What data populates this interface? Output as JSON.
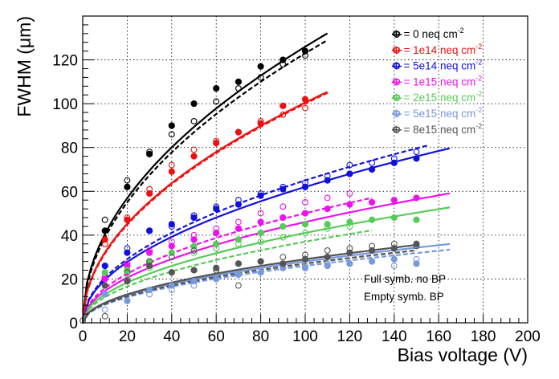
{
  "chart_data": {
    "type": "scatter",
    "xlabel": "Bias voltage (V)",
    "ylabel": "FWHM (μm)",
    "xlim": [
      0,
      200
    ],
    "ylim": [
      0,
      140
    ],
    "xticks": [
      0,
      20,
      40,
      60,
      80,
      100,
      120,
      140,
      160,
      180,
      200
    ],
    "yticks": [
      0,
      20,
      40,
      60,
      80,
      100,
      120
    ],
    "grid": true,
    "legend_placement": "top-right",
    "legend_prefix": "Φ = ",
    "legend_unit": " neq cm",
    "legend_exp": "-2",
    "annotations": [
      "Full symb. no BP",
      "Empty symb. BP"
    ],
    "series": [
      {
        "name": "0",
        "color": "#000000",
        "fit_full": {
          "a": 12.5,
          "b": 1.0,
          "xmax": 110
        },
        "fit_empty": {
          "a": 12.3,
          "b": 0.0,
          "xmax": 110
        },
        "full": [
          [
            10,
            42
          ],
          [
            20,
            62
          ],
          [
            30,
            77
          ],
          [
            40,
            90
          ],
          [
            50,
            100
          ],
          [
            60,
            107
          ],
          [
            70,
            110
          ],
          [
            80,
            117
          ],
          [
            90,
            120
          ],
          [
            100,
            124
          ]
        ],
        "empty": [
          [
            10,
            47
          ],
          [
            20,
            65
          ],
          [
            30,
            78
          ],
          [
            40,
            86
          ],
          [
            50,
            92
          ],
          [
            60,
            101
          ],
          [
            70,
            107
          ],
          [
            80,
            112
          ],
          [
            90,
            118
          ],
          [
            100,
            122
          ]
        ]
      },
      {
        "name": "1e14",
        "color": "#ee1111",
        "fit_full": {
          "a": 10.0,
          "b": 0.5,
          "xmax": 110
        },
        "fit_empty": {
          "a": 10.0,
          "b": 0.0,
          "xmax": 110
        },
        "full": [
          [
            10,
            38
          ],
          [
            20,
            47
          ],
          [
            30,
            59
          ],
          [
            40,
            69
          ],
          [
            50,
            76
          ],
          [
            60,
            82
          ],
          [
            70,
            87
          ],
          [
            80,
            91
          ],
          [
            90,
            99
          ],
          [
            100,
            102
          ]
        ],
        "empty": [
          [
            10,
            36
          ],
          [
            20,
            48
          ],
          [
            30,
            61
          ],
          [
            40,
            72
          ],
          [
            50,
            79
          ],
          [
            60,
            83
          ],
          [
            70,
            87
          ],
          [
            80,
            92
          ],
          [
            90,
            95
          ],
          [
            100,
            98
          ]
        ]
      },
      {
        "name": "5e14",
        "color": "#1111dd",
        "fit_full": {
          "a": 6.2,
          "b": 0.0,
          "xmax": 165
        },
        "fit_empty": {
          "a": 6.5,
          "b": 0.0,
          "xmax": 155
        },
        "full": [
          [
            10,
            26
          ],
          [
            20,
            32
          ],
          [
            30,
            42
          ],
          [
            40,
            45
          ],
          [
            50,
            48
          ],
          [
            60,
            52
          ],
          [
            70,
            54
          ],
          [
            80,
            58
          ],
          [
            90,
            61
          ],
          [
            100,
            62
          ],
          [
            110,
            65
          ],
          [
            120,
            68
          ],
          [
            130,
            70
          ],
          [
            140,
            73
          ],
          [
            150,
            75
          ]
        ],
        "empty": [
          [
            10,
            21
          ],
          [
            20,
            34
          ],
          [
            30,
            42
          ],
          [
            40,
            44
          ],
          [
            50,
            49
          ],
          [
            60,
            53
          ],
          [
            70,
            56
          ],
          [
            80,
            59
          ],
          [
            90,
            62
          ],
          [
            100,
            64
          ],
          [
            110,
            67
          ],
          [
            120,
            72
          ],
          [
            130,
            73
          ],
          [
            140,
            75
          ],
          [
            150,
            78
          ]
        ]
      },
      {
        "name": "1e15",
        "color": "#ee11ee",
        "fit_full": {
          "a": 4.6,
          "b": 0.0,
          "xmax": 165
        },
        "fit_empty": {
          "a": 5.0,
          "b": 0.0,
          "xmax": 130
        },
        "full": [
          [
            10,
            20
          ],
          [
            20,
            26
          ],
          [
            30,
            32
          ],
          [
            40,
            35
          ],
          [
            50,
            38
          ],
          [
            60,
            41
          ],
          [
            70,
            43
          ],
          [
            80,
            46
          ],
          [
            90,
            48
          ],
          [
            100,
            50
          ],
          [
            110,
            52
          ],
          [
            120,
            54
          ],
          [
            130,
            55
          ],
          [
            140,
            56
          ],
          [
            150,
            57
          ]
        ],
        "empty": [
          [
            10,
            21
          ],
          [
            20,
            27
          ],
          [
            30,
            33
          ],
          [
            40,
            37
          ],
          [
            50,
            40
          ],
          [
            60,
            43
          ],
          [
            70,
            46
          ],
          [
            80,
            50
          ],
          [
            90,
            53
          ],
          [
            100,
            55
          ],
          [
            110,
            57
          ],
          [
            120,
            59
          ]
        ]
      },
      {
        "name": "2e15",
        "color": "#55cc55",
        "fit_full": {
          "a": 4.1,
          "b": 0.0,
          "xmax": 165
        },
        "fit_empty": {
          "a": 3.7,
          "b": 0.0,
          "xmax": 130
        },
        "full": [
          [
            10,
            23
          ],
          [
            20,
            24
          ],
          [
            30,
            28
          ],
          [
            40,
            32
          ],
          [
            50,
            35
          ],
          [
            60,
            36
          ],
          [
            70,
            38
          ],
          [
            80,
            41
          ],
          [
            90,
            44
          ],
          [
            100,
            45
          ],
          [
            110,
            45
          ],
          [
            120,
            46
          ],
          [
            130,
            47
          ],
          [
            140,
            48
          ],
          [
            150,
            47
          ]
        ],
        "empty": [
          [
            10,
            13
          ],
          [
            20,
            20
          ],
          [
            30,
            25
          ],
          [
            40,
            30
          ],
          [
            50,
            32
          ],
          [
            60,
            34
          ],
          [
            70,
            36
          ],
          [
            80,
            37
          ],
          [
            90,
            39
          ],
          [
            100,
            41
          ],
          [
            110,
            43
          ],
          [
            120,
            44
          ]
        ]
      },
      {
        "name": "5e15",
        "color": "#7799dd",
        "fit_full": {
          "a": 2.8,
          "b": 0.0,
          "xmax": 165
        },
        "fit_empty": {
          "a": 2.6,
          "b": 0.0,
          "xmax": 165
        },
        "full": [
          [
            10,
            13
          ],
          [
            20,
            10
          ],
          [
            30,
            15
          ],
          [
            40,
            17
          ],
          [
            50,
            19
          ],
          [
            60,
            20
          ],
          [
            70,
            22
          ],
          [
            80,
            23
          ],
          [
            90,
            25
          ],
          [
            100,
            25
          ],
          [
            110,
            26
          ],
          [
            120,
            27
          ],
          [
            130,
            28
          ],
          [
            140,
            29
          ],
          [
            150,
            27
          ]
        ],
        "empty": [
          [
            10,
            6
          ],
          [
            20,
            10
          ],
          [
            30,
            13
          ],
          [
            40,
            15
          ],
          [
            50,
            17
          ],
          [
            60,
            20
          ],
          [
            70,
            22
          ],
          [
            80,
            23
          ],
          [
            90,
            25
          ],
          [
            100,
            26
          ],
          [
            110,
            27
          ],
          [
            120,
            27
          ],
          [
            130,
            28
          ],
          [
            140,
            26
          ],
          [
            150,
            29
          ]
        ]
      },
      {
        "name": "8e15",
        "color": "#555555",
        "fit_full": {
          "a": 2.9,
          "b": 0.0,
          "xmax": 150
        },
        "fit_empty": {
          "a": 2.7,
          "b": 0.0,
          "xmax": 150
        },
        "full": [
          [
            10,
            17
          ],
          [
            20,
            19
          ],
          [
            30,
            26
          ],
          [
            40,
            23
          ],
          [
            50,
            24
          ],
          [
            60,
            25
          ],
          [
            70,
            27
          ],
          [
            80,
            28
          ],
          [
            90,
            27
          ],
          [
            100,
            29
          ],
          [
            110,
            30
          ],
          [
            120,
            32
          ],
          [
            130,
            33
          ],
          [
            140,
            34
          ],
          [
            150,
            36
          ]
        ],
        "empty": [
          [
            0,
            1
          ],
          [
            10,
            3
          ],
          [
            20,
            23
          ],
          [
            30,
            28
          ],
          [
            40,
            30
          ],
          [
            50,
            33
          ],
          [
            60,
            24
          ],
          [
            70,
            17
          ],
          [
            80,
            28
          ],
          [
            90,
            30
          ],
          [
            100,
            31
          ],
          [
            110,
            33
          ],
          [
            120,
            34
          ],
          [
            130,
            35
          ],
          [
            140,
            36
          ],
          [
            150,
            35
          ]
        ]
      }
    ]
  }
}
